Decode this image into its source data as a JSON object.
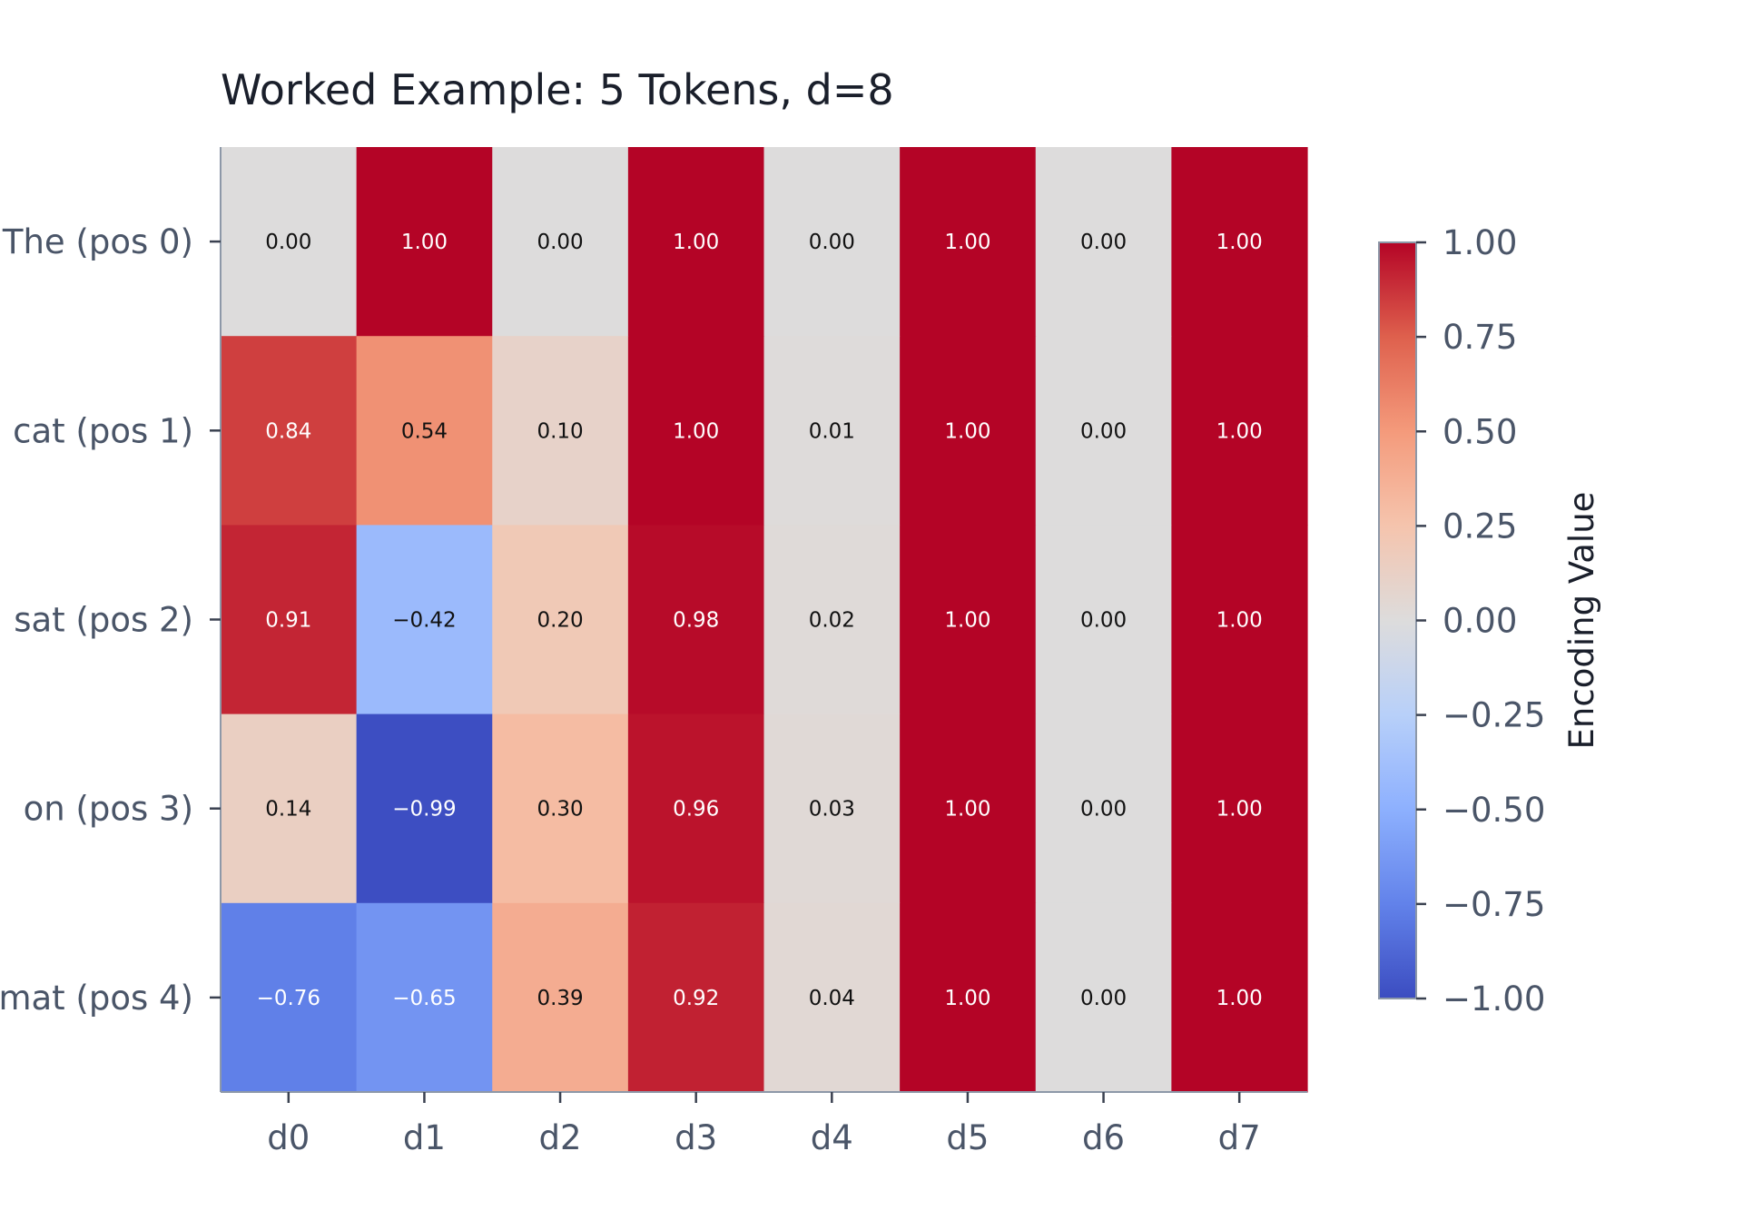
{
  "chart_data": {
    "type": "heatmap",
    "title": "Worked Example: 5 Tokens, d=8",
    "rows": [
      "The (pos 0)",
      "cat (pos 1)",
      "sat (pos 2)",
      "on (pos 3)",
      "mat (pos 4)"
    ],
    "columns": [
      "d0",
      "d1",
      "d2",
      "d3",
      "d4",
      "d5",
      "d6",
      "d7"
    ],
    "values": [
      [
        0.0,
        1.0,
        0.0,
        1.0,
        0.0,
        1.0,
        0.0,
        1.0
      ],
      [
        0.84,
        0.54,
        0.1,
        1.0,
        0.01,
        1.0,
        0.0,
        1.0
      ],
      [
        0.91,
        -0.42,
        0.2,
        0.98,
        0.02,
        1.0,
        0.0,
        1.0
      ],
      [
        0.14,
        -0.99,
        0.3,
        0.96,
        0.03,
        1.0,
        0.0,
        1.0
      ],
      [
        -0.76,
        -0.65,
        0.39,
        0.92,
        0.04,
        1.0,
        0.0,
        1.0
      ]
    ],
    "colormap": "coolwarm",
    "vmin": -1.0,
    "vmax": 1.0,
    "colorbar": {
      "label": "Encoding Value",
      "ticks": [
        1.0,
        0.75,
        0.5,
        0.25,
        0.0,
        -0.25,
        -0.5,
        -0.75,
        -1.0
      ],
      "tick_labels": [
        "1.00",
        "0.75",
        "0.50",
        "0.25",
        "0.00",
        "−0.25",
        "−0.50",
        "−0.75",
        "−1.00"
      ]
    }
  }
}
